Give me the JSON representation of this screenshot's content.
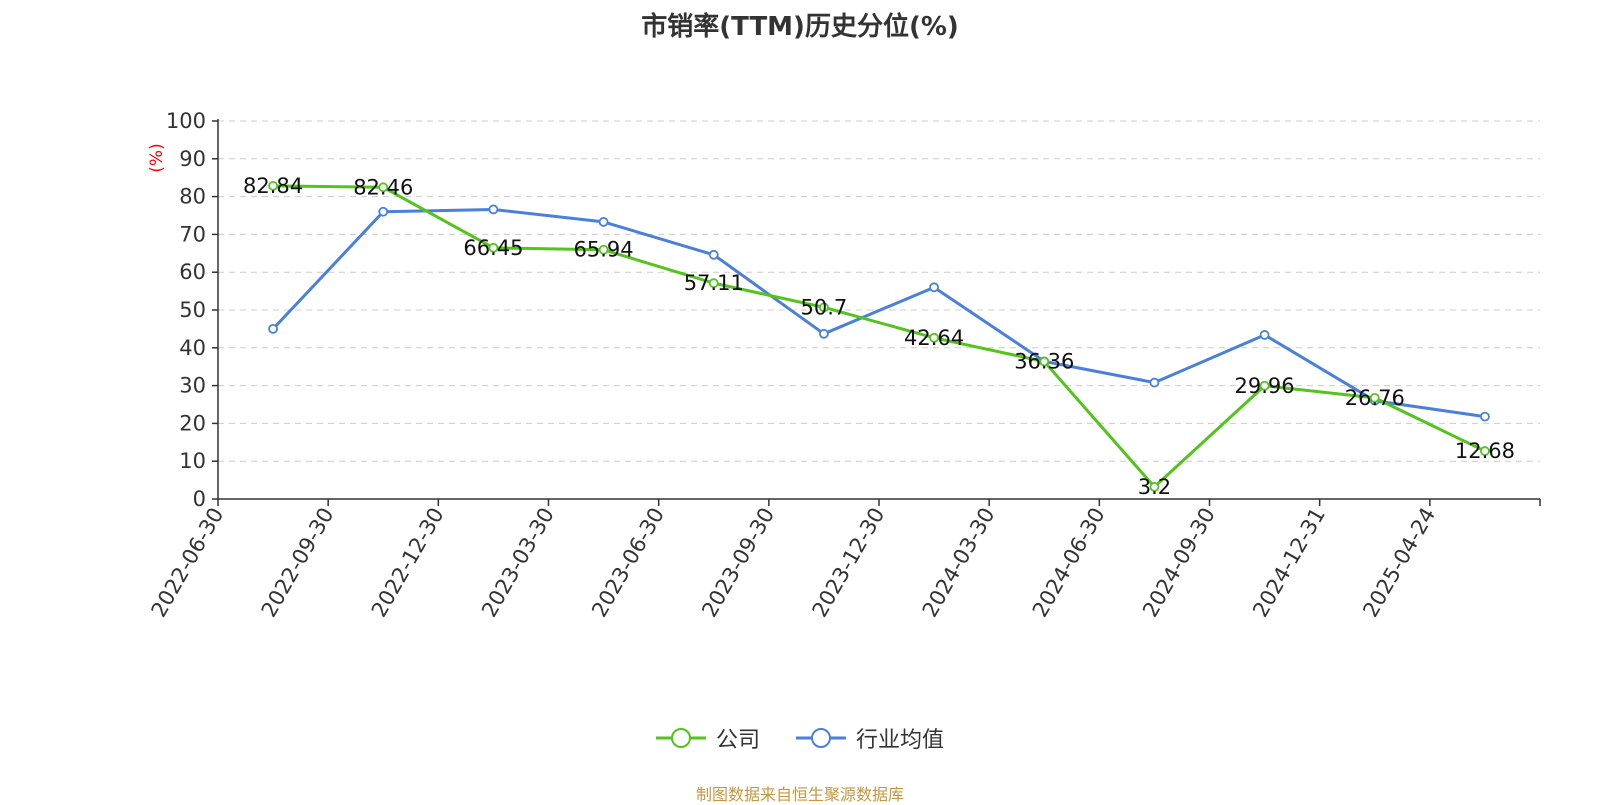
{
  "title": "市销率(TTM)历史分位(%)",
  "source_note": "制图数据来自恒生聚源数据库",
  "legend": {
    "company_label": "公司",
    "industry_label": "行业均值"
  },
  "colors": {
    "company": "#52c41a",
    "industry": "#4a7fdc",
    "axis_unit": "#ff0000",
    "source": "#c8963e"
  },
  "chart_data": {
    "type": "line",
    "title": "市销率(TTM)历史分位(%)",
    "ylabel": "(%)",
    "xlabel": "",
    "ylim": [
      0,
      100
    ],
    "yticks": [
      0,
      10,
      20,
      30,
      40,
      50,
      60,
      70,
      80,
      90,
      100
    ],
    "grid": true,
    "legend_position": "bottom-center",
    "categories": [
      "2022-06-30",
      "2022-09-30",
      "2022-12-30",
      "2023-03-30",
      "2023-06-30",
      "2023-09-30",
      "2023-12-30",
      "2024-03-30",
      "2024-06-30",
      "2024-09-30",
      "2024-12-31",
      "2025-04-24"
    ],
    "series": [
      {
        "name": "公司",
        "values": [
          82.84,
          82.46,
          66.45,
          65.94,
          57.11,
          50.7,
          42.64,
          36.36,
          3.2,
          29.96,
          26.76,
          12.68
        ],
        "data_labels": true
      },
      {
        "name": "行业均值",
        "values": [
          45.0,
          76.0,
          76.6,
          73.3,
          64.6,
          43.7,
          56.0,
          36.4,
          30.8,
          43.4,
          26.0,
          21.8
        ],
        "data_labels": false
      }
    ]
  }
}
